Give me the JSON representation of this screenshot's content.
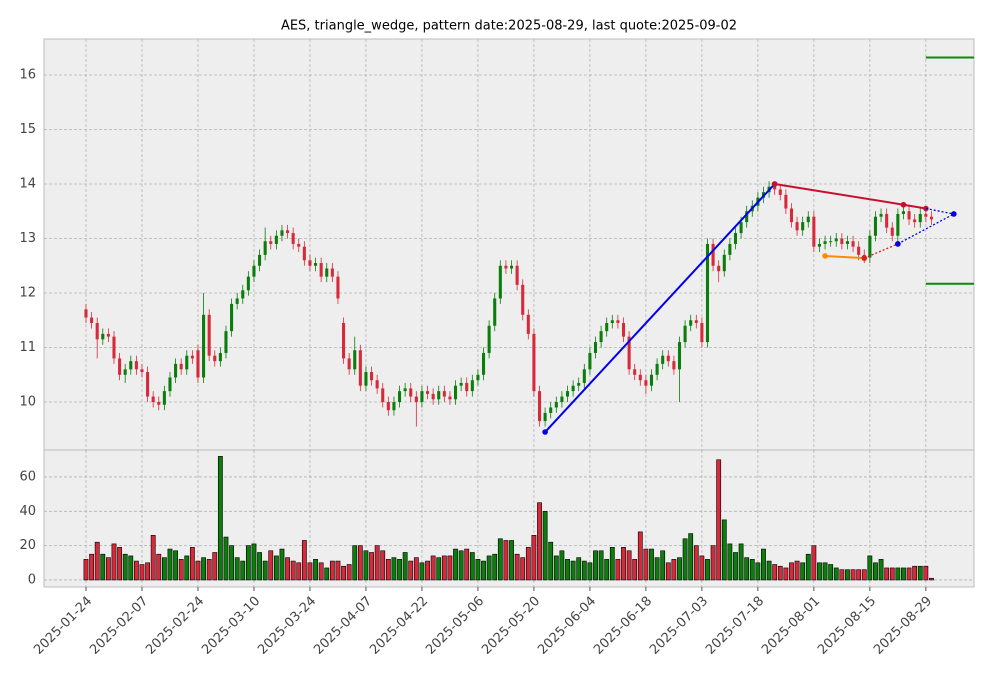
{
  "chart_data": {
    "type": "candlestick",
    "title": "AES, triangle_wedge, pattern date:2025-08-29, last quote:2025-09-02",
    "categories": [
      "2025-01-24",
      null,
      null,
      null,
      null,
      null,
      null,
      null,
      null,
      null,
      "2025-02-07",
      null,
      null,
      null,
      null,
      null,
      null,
      null,
      null,
      null,
      "2025-02-24",
      null,
      null,
      null,
      null,
      null,
      null,
      null,
      null,
      null,
      "2025-03-10",
      null,
      null,
      null,
      null,
      null,
      null,
      null,
      null,
      null,
      "2025-03-24",
      null,
      null,
      null,
      null,
      null,
      null,
      null,
      null,
      null,
      "2025-04-07",
      null,
      null,
      null,
      null,
      null,
      null,
      null,
      null,
      null,
      "2025-04-22",
      null,
      null,
      null,
      null,
      null,
      null,
      null,
      null,
      null,
      "2025-05-06",
      null,
      null,
      null,
      null,
      null,
      null,
      null,
      null,
      null,
      "2025-05-20",
      null,
      null,
      null,
      null,
      null,
      null,
      null,
      null,
      null,
      "2025-06-04",
      null,
      null,
      null,
      null,
      null,
      null,
      null,
      null,
      null,
      "2025-06-18",
      null,
      null,
      null,
      null,
      null,
      null,
      null,
      null,
      null,
      "2025-07-03",
      null,
      null,
      null,
      null,
      null,
      null,
      null,
      null,
      null,
      "2025-07-18",
      null,
      null,
      null,
      null,
      null,
      null,
      null,
      null,
      null,
      "2025-08-01",
      null,
      null,
      null,
      null,
      null,
      null,
      null,
      null,
      null,
      "2025-08-15",
      null,
      null,
      null,
      null,
      null,
      null,
      null,
      null,
      null,
      "2025-08-29",
      null
    ],
    "open": [
      11.7,
      11.55,
      11.45,
      11.15,
      11.25,
      11.2,
      10.8,
      10.5,
      10.6,
      10.75,
      10.6,
      10.55,
      10.1,
      10.0,
      9.95,
      10.2,
      10.45,
      10.7,
      10.6,
      10.85,
      10.95,
      10.45,
      11.6,
      10.85,
      10.75,
      10.9,
      11.3,
      11.8,
      11.9,
      12.05,
      12.3,
      12.5,
      12.7,
      12.95,
      12.9,
      13.05,
      13.15,
      13.1,
      12.9,
      12.85,
      12.6,
      12.5,
      12.55,
      12.3,
      12.45,
      12.3,
      11.45,
      10.8,
      10.6,
      10.95,
      10.3,
      10.55,
      10.4,
      10.25,
      10.0,
      9.85,
      10.0,
      10.2,
      10.25,
      10.1,
      10.0,
      10.2,
      10.15,
      10.05,
      10.2,
      10.1,
      10.05,
      10.3,
      10.35,
      10.2,
      10.4,
      10.5,
      10.9,
      11.4,
      11.9,
      12.5,
      12.45,
      12.5,
      12.15,
      11.6,
      11.25,
      10.2,
      9.65,
      9.8,
      9.9,
      10.0,
      10.1,
      10.2,
      10.3,
      10.35,
      10.6,
      10.9,
      11.1,
      11.3,
      11.45,
      11.5,
      11.45,
      11.2,
      10.6,
      10.5,
      10.4,
      10.3,
      10.5,
      10.7,
      10.85,
      10.75,
      10.6,
      11.1,
      11.4,
      11.5,
      11.45,
      11.1,
      12.9,
      12.5,
      12.4,
      12.7,
      12.9,
      13.1,
      13.3,
      13.5,
      13.6,
      13.75,
      13.85,
      13.95,
      13.9,
      13.8,
      13.55,
      13.3,
      13.15,
      13.3,
      13.4,
      12.85,
      12.9,
      12.95,
      12.95,
      13.0,
      12.9,
      12.95,
      12.85,
      12.7,
      12.65,
      13.05,
      13.4,
      13.45,
      13.2,
      13.05,
      13.45,
      13.5,
      13.35,
      13.3,
      13.45,
      13.4
    ],
    "high": [
      11.8,
      11.65,
      11.55,
      11.35,
      11.35,
      11.3,
      10.9,
      10.7,
      10.85,
      10.85,
      10.7,
      10.65,
      10.2,
      10.1,
      10.3,
      10.55,
      10.8,
      10.8,
      10.95,
      10.95,
      11.05,
      12.0,
      11.7,
      10.95,
      11.0,
      11.4,
      11.9,
      12.0,
      12.15,
      12.4,
      12.6,
      12.8,
      13.2,
      13.05,
      13.15,
      13.25,
      13.25,
      13.2,
      13.0,
      12.95,
      12.7,
      12.65,
      12.65,
      12.55,
      12.55,
      12.4,
      11.55,
      10.9,
      11.2,
      11.05,
      10.65,
      10.65,
      10.5,
      10.35,
      10.1,
      10.1,
      10.3,
      10.35,
      10.35,
      10.2,
      10.3,
      10.3,
      10.25,
      10.3,
      10.3,
      10.2,
      10.4,
      10.45,
      10.45,
      10.5,
      10.6,
      11.0,
      11.5,
      12.0,
      12.6,
      12.6,
      12.6,
      12.6,
      12.25,
      11.7,
      11.35,
      10.3,
      9.9,
      10.0,
      10.1,
      10.2,
      10.3,
      10.4,
      10.45,
      10.7,
      11.0,
      11.2,
      11.4,
      11.55,
      11.6,
      11.6,
      11.55,
      11.3,
      10.7,
      10.6,
      10.5,
      10.6,
      10.8,
      10.95,
      10.95,
      10.85,
      11.2,
      11.5,
      11.6,
      11.6,
      11.55,
      13.0,
      13.0,
      12.6,
      12.8,
      13.0,
      13.2,
      13.4,
      13.6,
      13.7,
      13.85,
      13.95,
      14.05,
      14.05,
      14.0,
      13.9,
      13.65,
      13.4,
      13.4,
      13.5,
      13.5,
      13.0,
      13.05,
      13.05,
      13.1,
      13.1,
      13.05,
      13.05,
      12.95,
      12.8,
      13.15,
      13.5,
      13.55,
      13.55,
      13.3,
      13.55,
      13.6,
      13.6,
      13.45,
      13.55,
      13.55,
      13.5
    ],
    "low": [
      11.45,
      11.35,
      10.8,
      11.05,
      11.1,
      10.7,
      10.4,
      10.35,
      10.5,
      10.5,
      10.45,
      10.0,
      9.9,
      9.85,
      9.85,
      10.1,
      10.35,
      10.5,
      10.5,
      10.7,
      10.35,
      10.35,
      10.75,
      10.65,
      10.65,
      10.8,
      11.2,
      11.7,
      11.8,
      11.95,
      12.2,
      12.4,
      12.6,
      12.8,
      12.8,
      12.95,
      13.0,
      12.8,
      12.75,
      12.5,
      12.4,
      12.4,
      12.2,
      12.2,
      12.2,
      11.8,
      10.7,
      10.5,
      10.5,
      10.2,
      10.2,
      10.3,
      10.15,
      9.9,
      9.75,
      9.75,
      9.9,
      10.1,
      10.0,
      9.55,
      9.9,
      10.05,
      9.95,
      9.95,
      10.0,
      9.95,
      9.95,
      10.2,
      10.1,
      10.1,
      10.3,
      10.4,
      10.8,
      11.3,
      11.8,
      12.35,
      12.35,
      12.05,
      11.5,
      11.15,
      10.1,
      9.55,
      9.55,
      9.7,
      9.8,
      9.9,
      10.0,
      10.1,
      10.2,
      10.25,
      10.5,
      10.8,
      11.0,
      11.2,
      11.35,
      11.35,
      11.1,
      10.5,
      10.4,
      10.3,
      10.15,
      10.2,
      10.4,
      10.6,
      10.65,
      10.5,
      10.0,
      11.0,
      11.3,
      11.35,
      11.0,
      11.0,
      12.4,
      12.2,
      12.3,
      12.6,
      12.8,
      13.0,
      13.2,
      13.4,
      13.5,
      13.65,
      13.75,
      13.8,
      13.7,
      13.45,
      13.2,
      13.05,
      13.05,
      13.2,
      12.75,
      12.75,
      12.8,
      12.85,
      12.85,
      12.8,
      12.8,
      12.75,
      12.6,
      12.55,
      12.55,
      12.95,
      13.3,
      13.1,
      12.95,
      12.95,
      13.35,
      13.25,
      13.2,
      13.2,
      13.3,
      13.25
    ],
    "close": [
      11.55,
      11.45,
      11.15,
      11.25,
      11.2,
      10.8,
      10.5,
      10.6,
      10.75,
      10.6,
      10.55,
      10.1,
      10.0,
      9.95,
      10.2,
      10.45,
      10.7,
      10.6,
      10.85,
      10.8,
      10.45,
      11.6,
      10.85,
      10.75,
      10.9,
      11.3,
      11.8,
      11.9,
      12.05,
      12.3,
      12.5,
      12.7,
      12.95,
      12.9,
      13.05,
      13.15,
      13.1,
      12.9,
      12.85,
      12.6,
      12.5,
      12.55,
      12.3,
      12.45,
      12.3,
      11.9,
      10.8,
      10.6,
      10.95,
      10.3,
      10.55,
      10.4,
      10.25,
      10.0,
      9.85,
      10.0,
      10.2,
      10.25,
      10.1,
      10.0,
      10.2,
      10.15,
      10.05,
      10.2,
      10.1,
      10.05,
      10.3,
      10.35,
      10.2,
      10.4,
      10.5,
      10.9,
      11.4,
      11.9,
      12.5,
      12.45,
      12.5,
      12.15,
      11.6,
      11.25,
      10.2,
      9.65,
      9.8,
      9.9,
      10.0,
      10.1,
      10.2,
      10.3,
      10.35,
      10.6,
      10.9,
      11.1,
      11.3,
      11.45,
      11.5,
      11.45,
      11.2,
      10.6,
      10.5,
      10.4,
      10.3,
      10.5,
      10.7,
      10.85,
      10.75,
      10.6,
      11.1,
      11.4,
      11.5,
      11.45,
      11.1,
      12.9,
      12.5,
      12.4,
      12.7,
      12.9,
      13.1,
      13.3,
      13.5,
      13.6,
      13.75,
      13.85,
      13.95,
      13.9,
      13.8,
      13.55,
      13.3,
      13.15,
      13.3,
      13.4,
      12.85,
      12.9,
      12.95,
      12.95,
      13.0,
      12.9,
      12.95,
      12.85,
      12.7,
      12.65,
      13.05,
      13.4,
      13.45,
      13.2,
      13.05,
      13.45,
      13.5,
      13.35,
      13.3,
      13.45,
      13.4,
      13.35
    ],
    "volume": [
      12,
      15,
      22,
      15,
      13,
      21,
      19,
      15,
      14,
      11,
      9,
      10,
      26,
      15,
      13,
      18,
      17,
      12,
      14,
      19,
      11,
      13,
      12,
      16,
      72,
      25,
      20,
      13,
      11,
      20,
      21,
      16,
      11,
      17,
      14,
      18,
      13,
      11,
      10,
      23,
      10,
      12,
      10,
      7,
      11,
      11,
      8,
      9,
      20,
      20,
      17,
      16,
      20,
      17,
      12,
      13,
      12,
      16,
      11,
      13,
      10,
      11,
      14,
      13,
      14,
      14,
      18,
      17,
      18,
      16,
      12,
      11,
      14,
      15,
      24,
      23,
      23,
      15,
      13,
      19,
      26,
      45,
      40,
      22,
      14,
      17,
      12,
      11,
      13,
      11,
      10,
      17,
      17,
      12,
      19,
      12,
      19,
      17,
      12,
      28,
      18,
      18,
      13,
      17,
      10,
      12,
      13,
      24,
      27,
      20,
      14,
      12,
      20,
      70,
      35,
      21,
      16,
      21,
      13,
      12,
      10,
      18,
      11,
      9,
      8,
      7,
      10,
      11,
      10,
      15,
      20,
      10,
      10,
      9,
      7,
      6,
      6,
      6,
      6,
      6,
      14,
      10,
      12,
      7,
      7,
      7,
      7,
      7,
      8,
      8,
      8,
      1
    ],
    "up_color": "#0b7d0b",
    "down_color": "#d62a3a",
    "xlim": [
      -7.5,
      158.6
    ],
    "ylim": [
      9.12,
      16.66
    ],
    "yticks": [
      10,
      11,
      12,
      13,
      14,
      15,
      16
    ],
    "volume_ylim": [
      -4.1,
      75.7
    ],
    "volume_yticks": [
      0,
      20,
      40,
      60
    ],
    "grid": true,
    "lines": [
      {
        "color": "#0000ee",
        "style": "solid",
        "markers": true,
        "x": [
          82,
          123
        ],
        "y": [
          9.45,
          14.0
        ]
      },
      {
        "color": "#c8102e",
        "style": "solid",
        "markers": true,
        "x": [
          123,
          146,
          150
        ],
        "y": [
          14.0,
          13.62,
          13.55
        ]
      },
      {
        "color": "#ff8c00",
        "style": "solid",
        "markers": true,
        "x": [
          132,
          139
        ],
        "y": [
          12.68,
          12.64
        ]
      },
      {
        "color": "#d62020",
        "style": "dotted",
        "markers": true,
        "x": [
          139,
          145
        ],
        "y": [
          12.64,
          12.9
        ]
      },
      {
        "color": "#0000ee",
        "style": "dotted",
        "markers": true,
        "x": [
          145,
          155
        ],
        "y": [
          12.9,
          13.45
        ]
      },
      {
        "color": "#0000ee",
        "style": "dotted",
        "markers": false,
        "x": [
          150,
          155
        ],
        "y": [
          13.55,
          13.45
        ]
      },
      {
        "color": "#0a8a0a",
        "style": "solid",
        "markers": false,
        "x": [
          150,
          158.6
        ],
        "y": [
          16.32,
          16.32
        ]
      },
      {
        "color": "#0a8a0a",
        "style": "solid",
        "markers": false,
        "x": [
          150,
          158.6
        ],
        "y": [
          12.17,
          12.17
        ]
      }
    ]
  }
}
